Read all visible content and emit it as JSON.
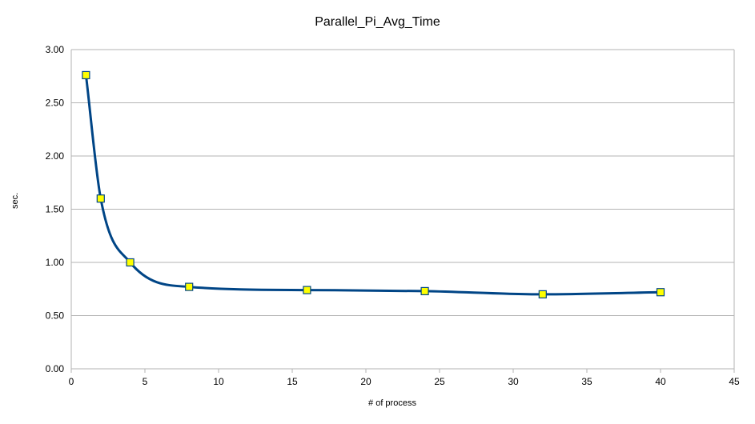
{
  "chart_data": {
    "type": "line",
    "title": "Parallel_Pi_Avg_Time",
    "xlabel": "# of process",
    "ylabel": "sec.",
    "xlim": [
      0,
      45
    ],
    "ylim": [
      0,
      3.0
    ],
    "x_ticks": [
      "0",
      "5",
      "10",
      "15",
      "20",
      "25",
      "30",
      "35",
      "40",
      "45"
    ],
    "y_ticks": [
      "0.00",
      "0.50",
      "1.00",
      "1.50",
      "2.00",
      "2.50",
      "3.00"
    ],
    "grid": "horizontal",
    "legend": "none",
    "smoothed": true,
    "series": [
      {
        "x": [
          1,
          2,
          4,
          8,
          16,
          24,
          32,
          40
        ],
        "y": [
          2.76,
          1.6,
          1.0,
          0.77,
          0.74,
          0.73,
          0.7,
          0.72
        ],
        "line_color": "#004586",
        "marker": "square",
        "marker_fill": "#ffff00",
        "marker_stroke": "#004586"
      }
    ]
  }
}
